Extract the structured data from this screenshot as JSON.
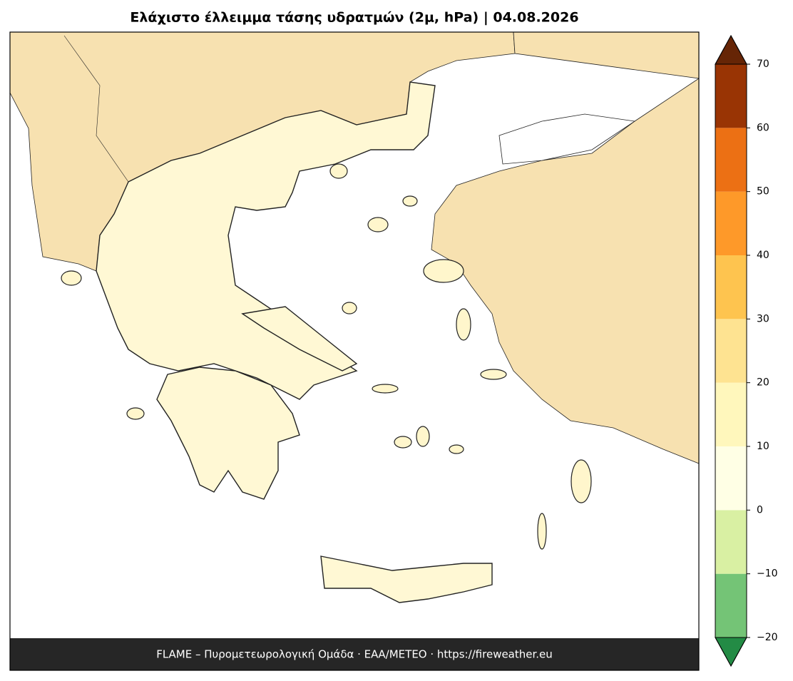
{
  "header": {
    "title": "Ελάχιστο έλλειμμα τάσης υδρατμών (2μ, hPa)  |  04.08.2026"
  },
  "footer": {
    "text": "FLAME – Πυρομετεωρολογική Ομάδα · ΕΑΑ/METEO · https://fireweather.eu"
  },
  "colorbar": {
    "ticks": [
      {
        "value": -20,
        "label": "−20"
      },
      {
        "value": -10,
        "label": "−10"
      },
      0,
      10,
      20,
      30,
      40,
      50,
      60,
      70
    ],
    "colors": [
      "#74c476",
      "#d9f0a3",
      "#ffffe5",
      "#fff7bc",
      "#fee391",
      "#fec44f",
      "#fe9929",
      "#ec7014",
      "#993404"
    ],
    "under_color": "#238b45",
    "over_color": "#662506"
  }
}
